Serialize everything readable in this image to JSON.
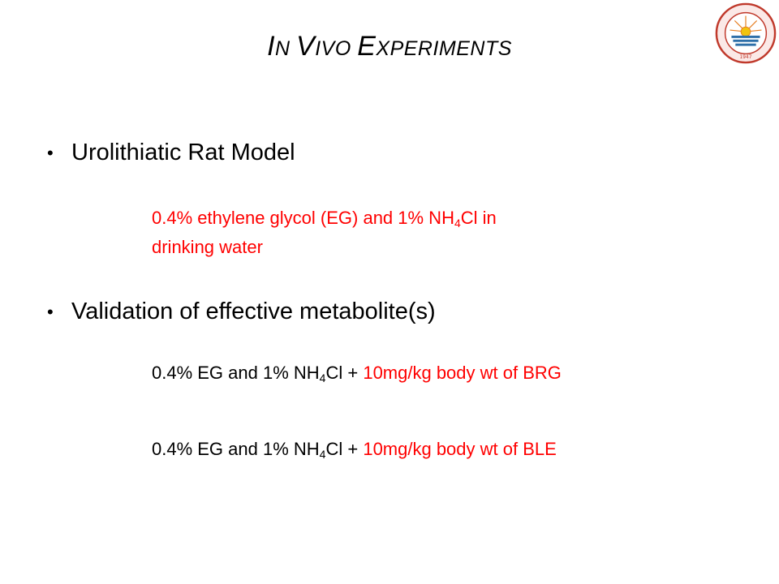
{
  "title": {
    "parts": [
      {
        "cap": "I",
        "rest": "N "
      },
      {
        "cap": "V",
        "rest": "IVO "
      },
      {
        "cap": "E",
        "rest": "XPERIMENTS"
      }
    ]
  },
  "logo": {
    "icon": "university-seal-icon",
    "year": "1947"
  },
  "bullets": [
    {
      "label": "Urolithiatic Rat Model"
    },
    {
      "label": "Validation of effective metabolite(s)"
    }
  ],
  "urolithiatic_desc": {
    "line1_pre": "0.4% ethylene glycol (EG) and 1% NH",
    "sub": "4",
    "line1_post": "Cl in",
    "line2": "drinking water"
  },
  "treatments": [
    {
      "pre": "0.4% EG and 1% NH",
      "sub": "4",
      "post": "Cl + ",
      "dose": "10mg/kg body wt of BRG"
    },
    {
      "pre": "0.4% EG and 1% NH",
      "sub": "4",
      "post": "Cl + ",
      "dose": "10mg/kg body wt of BLE"
    }
  ],
  "colors": {
    "accent": "#ff0000",
    "text": "#000000",
    "seal": "#c0392b",
    "seal_blue": "#2e6fa8"
  }
}
